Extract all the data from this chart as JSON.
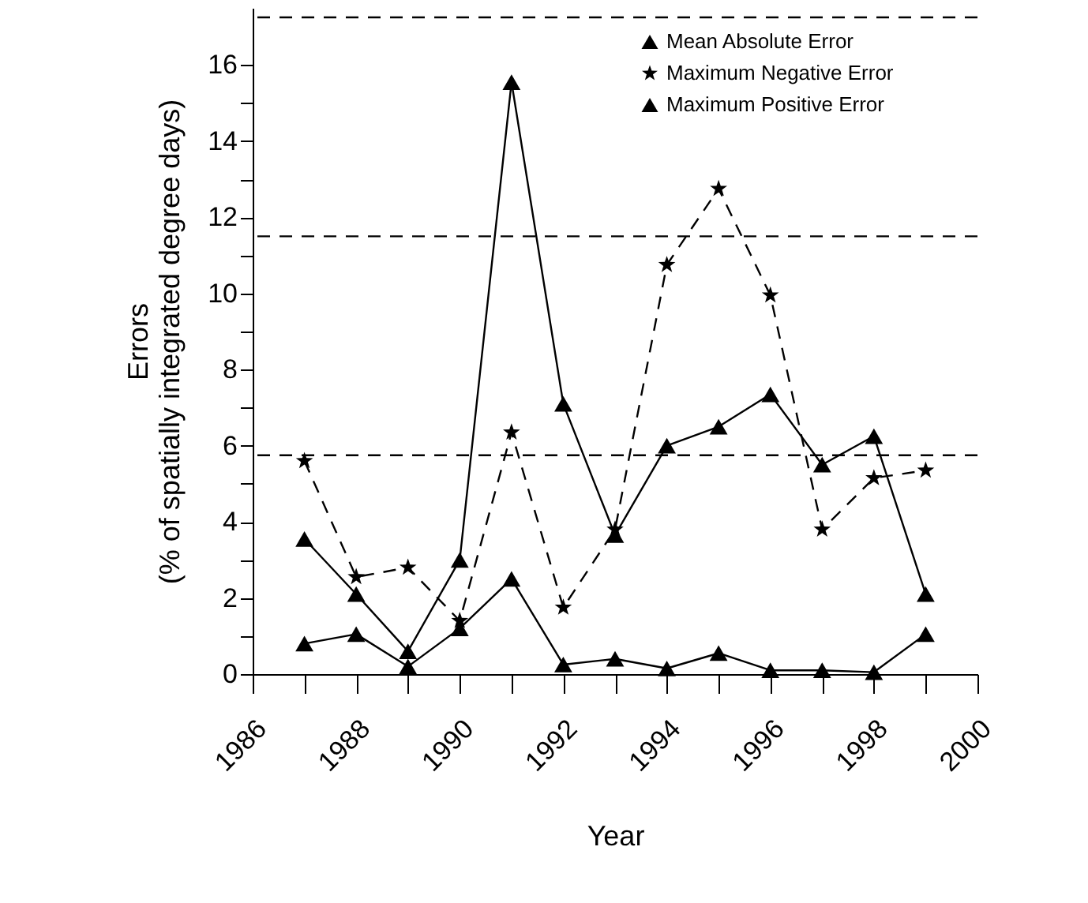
{
  "chart_data": {
    "type": "line",
    "xlabel": "Year",
    "ylabel": "Errors\n(% of spatially integrated degree days)",
    "x": [
      1987,
      1988,
      1989,
      1990,
      1991,
      1992,
      1993,
      1994,
      1995,
      1996,
      1997,
      1998,
      1999
    ],
    "series": [
      {
        "name": "Mean Absolute Error",
        "color": "#000000",
        "marker": "triangle",
        "line_style": "solid",
        "values": [
          0.8,
          1.05,
          0.2,
          1.2,
          2.5,
          0.25,
          0.4,
          0.15,
          0.55,
          0.1,
          0.1,
          0.05,
          1.05
        ]
      },
      {
        "name": "Maximum Negative Error",
        "color": "#000000",
        "marker": "star",
        "line_style": "dashed",
        "values": [
          5.6,
          2.55,
          2.8,
          1.4,
          6.35,
          1.75,
          3.8,
          10.75,
          12.75,
          9.95,
          3.8,
          5.15,
          5.35
        ]
      },
      {
        "name": "Maximum  Positive Error",
        "color": "#000000",
        "marker": "triangle",
        "line_style": "solid",
        "values": [
          3.55,
          2.1,
          0.6,
          3.0,
          15.55,
          7.1,
          3.65,
          6.0,
          6.5,
          7.35,
          5.5,
          6.25,
          2.1
        ]
      }
    ],
    "xlim": [
      1986,
      2000
    ],
    "xticks": [
      1986,
      {
        "value": 1987,
        "label": null
      },
      1988,
      {
        "value": 1989,
        "label": null
      },
      1990,
      {
        "value": 1991,
        "label": null
      },
      1992,
      {
        "value": 1993,
        "label": null
      },
      1994,
      {
        "value": 1995,
        "label": null
      },
      1996,
      {
        "value": 1997,
        "label": null
      },
      1998,
      {
        "value": 1999,
        "label": null
      },
      2000
    ],
    "ylim": [
      0,
      17.5
    ],
    "yticks": [
      0,
      {
        "value": 1,
        "label": null
      },
      2,
      {
        "value": 3,
        "label": null
      },
      4,
      {
        "value": 5,
        "label": null
      },
      6,
      {
        "value": 7,
        "label": null
      },
      8,
      {
        "value": 9,
        "label": null
      },
      10,
      {
        "value": 11,
        "label": null
      },
      12,
      {
        "value": 13,
        "label": null
      },
      14,
      {
        "value": 15,
        "label": null
      },
      16
    ],
    "ref_lines": [
      {
        "axis": "y",
        "value": 5.75,
        "line_style": "dashed",
        "color": "#000000"
      },
      {
        "axis": "y",
        "value": 11.5,
        "line_style": "dashed",
        "color": "#000000"
      },
      {
        "axis": "y",
        "value": 17.25,
        "line_style": "dashed",
        "color": "#000000"
      }
    ],
    "grid": false,
    "legend": "top right"
  }
}
